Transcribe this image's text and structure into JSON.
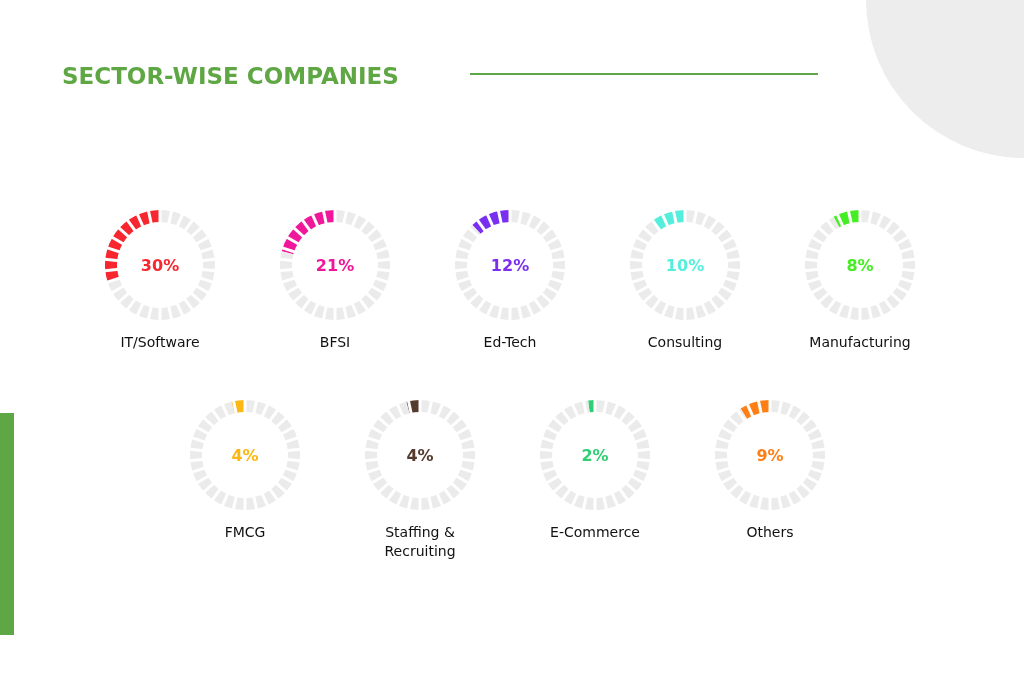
{
  "chart_data": [
    {
      "type": "donut",
      "subtitle": "SECTOR-WISE COMPANIES",
      "title": "IT/Software",
      "categories": [
        null,
        null
      ],
      "values": [
        30,
        70
      ],
      "colors": [
        "#f7262f",
        "#ebebeb"
      ],
      "annotations": [
        "30%"
      ]
    },
    {
      "type": "donut",
      "title": "BFSI",
      "categories": [
        null,
        null
      ],
      "values": [
        21,
        79
      ],
      "colors": [
        "#f0179a",
        "#ebebeb"
      ],
      "annotations": [
        "21%"
      ]
    },
    {
      "type": "donut",
      "title": "Ed-Tech",
      "categories": [
        null,
        null
      ],
      "values": [
        12,
        88
      ],
      "colors": [
        "#7a2ff0",
        "#ebebeb"
      ],
      "annotations": [
        "12%"
      ]
    },
    {
      "type": "donut",
      "title": "Consulting",
      "categories": [
        null,
        null
      ],
      "values": [
        10,
        90
      ],
      "colors": [
        "#55eedd",
        "#ebebeb"
      ],
      "annotations": [
        "10%"
      ]
    },
    {
      "type": "donut",
      "title": "Manufacturing",
      "categories": [
        null,
        null
      ],
      "values": [
        8,
        92
      ],
      "colors": [
        "#44ee22",
        "#ebebeb"
      ],
      "annotations": [
        "8%"
      ]
    },
    {
      "type": "donut",
      "title": "FMCG",
      "categories": [
        null,
        null
      ],
      "values": [
        4,
        96
      ],
      "colors": [
        "#fbb813",
        "#ebebeb"
      ],
      "annotations": [
        "4%"
      ]
    },
    {
      "type": "donut",
      "title": "Staffing & Recruiting",
      "categories": [
        null,
        null
      ],
      "values": [
        4,
        96
      ],
      "colors": [
        "#553a2e",
        "#ebebeb"
      ],
      "annotations": [
        "4%"
      ]
    },
    {
      "type": "donut",
      "title": "E-Commerce",
      "categories": [
        null,
        null
      ],
      "values": [
        2,
        98
      ],
      "colors": [
        "#2fcf73",
        "#ebebeb"
      ],
      "annotations": [
        "2%"
      ]
    },
    {
      "type": "donut",
      "title": "Others",
      "categories": [
        null,
        null
      ],
      "values": [
        9,
        91
      ],
      "colors": [
        "#ff7f17",
        "#ebebeb"
      ],
      "annotations": [
        "9%"
      ]
    }
  ]
}
